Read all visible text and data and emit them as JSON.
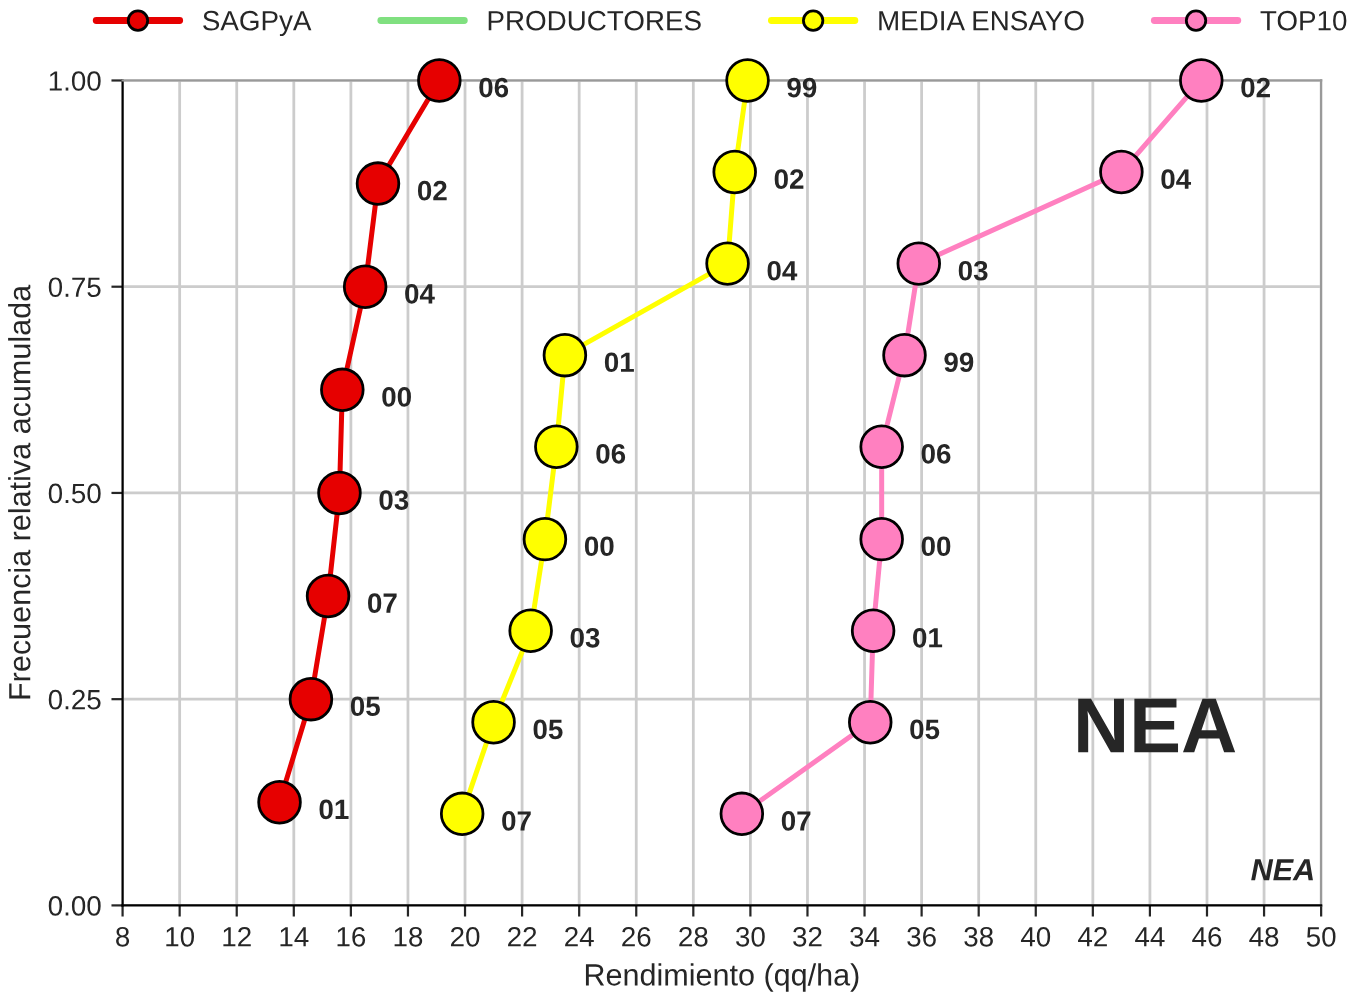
{
  "chart_data": {
    "type": "line",
    "xlabel": "Rendimiento (qq/ha)",
    "ylabel": "Frecuencia relativa acumulada",
    "xlim": [
      8,
      50
    ],
    "xticks": [
      8,
      10,
      12,
      14,
      16,
      18,
      20,
      22,
      24,
      26,
      28,
      30,
      32,
      34,
      36,
      38,
      40,
      42,
      44,
      46,
      48,
      50
    ],
    "ylim": [
      0,
      1
    ],
    "yticks": [
      {
        "value": 0,
        "label": "0.00"
      },
      {
        "value": 0.25,
        "label": "0.25"
      },
      {
        "value": 0.5,
        "label": "0.50"
      },
      {
        "value": 0.75,
        "label": "0.75"
      },
      {
        "value": 1,
        "label": "1.00"
      }
    ],
    "grid": true,
    "legend": "top",
    "marker": "circle",
    "line_style": "solid",
    "series": [
      {
        "name": "SAGPyA",
        "color": "#e60000",
        "x": [
          13.5,
          14.6,
          15.2,
          15.6,
          15.7,
          16.5,
          16.95,
          19.1
        ],
        "values": [
          0.125,
          0.25,
          0.375,
          0.5,
          0.625,
          0.75,
          0.875,
          1.0
        ]
      },
      {
        "name": "PRODUCTORES",
        "color": "#80e080"
      },
      {
        "name": "MEDIA ENSAYO",
        "color": "#ffff00",
        "x": [
          19.9,
          21.0,
          22.3,
          22.8,
          23.2,
          23.5,
          29.2,
          29.45,
          29.9
        ],
        "values": [
          0.111,
          0.222,
          0.333,
          0.444,
          0.556,
          0.667,
          0.778,
          0.889,
          1.0
        ]
      },
      {
        "name": "TOP10",
        "color": "#ff80c0",
        "x": [
          29.7,
          34.2,
          34.3,
          34.6,
          34.6,
          35.4,
          35.9,
          43.0,
          45.8
        ],
        "values": [
          0.111,
          0.222,
          0.333,
          0.444,
          0.556,
          0.667,
          0.778,
          0.889,
          1.0
        ]
      }
    ],
    "annotations": [
      {
        "text": "01",
        "x": 13.5,
        "y": 0.125
      },
      {
        "text": "05",
        "x": 14.6,
        "y": 0.25
      },
      {
        "text": "07",
        "x": 15.2,
        "y": 0.375
      },
      {
        "text": "03",
        "x": 15.6,
        "y": 0.5
      },
      {
        "text": "00",
        "x": 15.7,
        "y": 0.625
      },
      {
        "text": "04",
        "x": 16.5,
        "y": 0.75
      },
      {
        "text": "02",
        "x": 16.95,
        "y": 0.875
      },
      {
        "text": "06",
        "x": 19.1,
        "y": 1.0
      },
      {
        "text": "07",
        "x": 19.9,
        "y": 0.111
      },
      {
        "text": "05",
        "x": 21.0,
        "y": 0.222
      },
      {
        "text": "03",
        "x": 22.3,
        "y": 0.333
      },
      {
        "text": "00",
        "x": 22.8,
        "y": 0.444
      },
      {
        "text": "06",
        "x": 23.2,
        "y": 0.556
      },
      {
        "text": "01",
        "x": 23.5,
        "y": 0.667
      },
      {
        "text": "04",
        "x": 29.2,
        "y": 0.778
      },
      {
        "text": "02",
        "x": 29.45,
        "y": 0.889
      },
      {
        "text": "99",
        "x": 29.9,
        "y": 1.0
      },
      {
        "text": "07",
        "x": 29.7,
        "y": 0.111
      },
      {
        "text": "05",
        "x": 34.2,
        "y": 0.222
      },
      {
        "text": "01",
        "x": 34.3,
        "y": 0.333
      },
      {
        "text": "00",
        "x": 34.6,
        "y": 0.444
      },
      {
        "text": "06",
        "x": 34.6,
        "y": 0.556
      },
      {
        "text": "99",
        "x": 35.4,
        "y": 0.667
      },
      {
        "text": "03",
        "x": 35.9,
        "y": 0.778
      },
      {
        "text": "04",
        "x": 43.0,
        "y": 0.889
      },
      {
        "text": "02",
        "x": 45.8,
        "y": 1.0
      },
      "NEA",
      "NEA"
    ]
  }
}
